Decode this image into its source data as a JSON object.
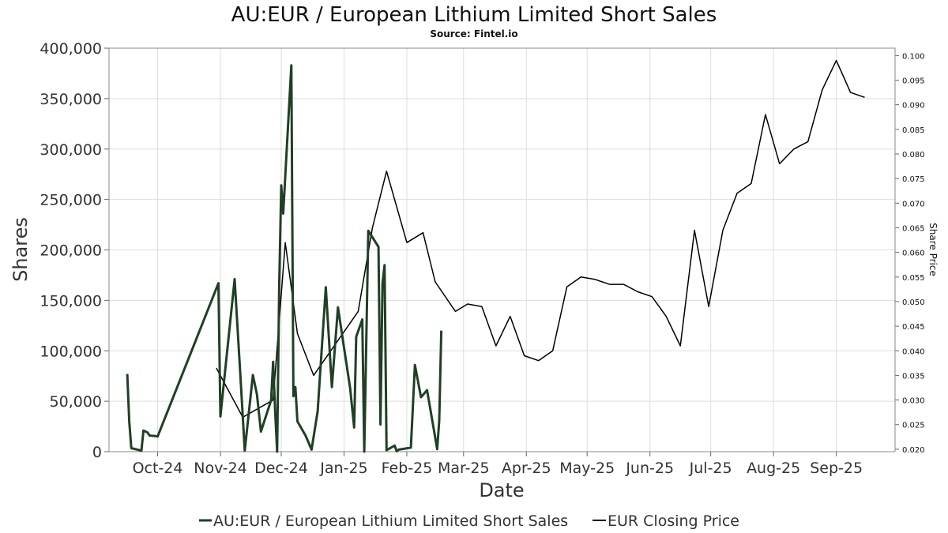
{
  "chart_data": {
    "type": "line",
    "title": "AU:EUR / European Lithium Limited Short Sales",
    "subtitle": "Source: Fintel.io",
    "xlabel": "Date",
    "ylabel": "Shares",
    "y2label": "Share Price",
    "xlim": [
      "2024-09-07",
      "2025-09-30"
    ],
    "ylim": [
      0,
      400000
    ],
    "y2lim": [
      0.0195,
      0.1015
    ],
    "x_ticks": [
      {
        "date": "2024-10-01",
        "label": "Oct-24"
      },
      {
        "date": "2024-11-01",
        "label": "Nov-24"
      },
      {
        "date": "2024-12-01",
        "label": "Dec-24"
      },
      {
        "date": "2025-01-01",
        "label": "Jan-25"
      },
      {
        "date": "2025-02-01",
        "label": "Feb-25"
      },
      {
        "date": "2025-03-01",
        "label": "Mar-25"
      },
      {
        "date": "2025-04-01",
        "label": "Apr-25"
      },
      {
        "date": "2025-05-01",
        "label": "May-25"
      },
      {
        "date": "2025-06-01",
        "label": "Jun-25"
      },
      {
        "date": "2025-07-01",
        "label": "Jul-25"
      },
      {
        "date": "2025-08-01",
        "label": "Aug-25"
      },
      {
        "date": "2025-09-01",
        "label": "Sep-25"
      }
    ],
    "y_ticks": [
      {
        "value": 0,
        "label": "0"
      },
      {
        "value": 50000,
        "label": "50,000"
      },
      {
        "value": 100000,
        "label": "100,000"
      },
      {
        "value": 150000,
        "label": "150,000"
      },
      {
        "value": 200000,
        "label": "200,000"
      },
      {
        "value": 250000,
        "label": "250,000"
      },
      {
        "value": 300000,
        "label": "300,000"
      },
      {
        "value": 350000,
        "label": "350,000"
      },
      {
        "value": 400000,
        "label": "400,000"
      }
    ],
    "y2_ticks": [
      {
        "value": 0.02,
        "label": "0.020"
      },
      {
        "value": 0.025,
        "label": "0.025"
      },
      {
        "value": 0.03,
        "label": "0.030"
      },
      {
        "value": 0.035,
        "label": "0.035"
      },
      {
        "value": 0.04,
        "label": "0.040"
      },
      {
        "value": 0.045,
        "label": "0.045"
      },
      {
        "value": 0.05,
        "label": "0.050"
      },
      {
        "value": 0.055,
        "label": "0.055"
      },
      {
        "value": 0.06,
        "label": "0.060"
      },
      {
        "value": 0.065,
        "label": "0.065"
      },
      {
        "value": 0.07,
        "label": "0.070"
      },
      {
        "value": 0.075,
        "label": "0.075"
      },
      {
        "value": 0.08,
        "label": "0.080"
      },
      {
        "value": 0.085,
        "label": "0.085"
      },
      {
        "value": 0.09,
        "label": "0.090"
      },
      {
        "value": 0.095,
        "label": "0.095"
      },
      {
        "value": 0.1,
        "label": "0.100"
      }
    ],
    "grid": true,
    "legend_position": "bottom",
    "series": [
      {
        "name": "AU:EUR / European Lithium Limited Short Sales",
        "axis": "left",
        "color": "#1f4024",
        "points": [
          [
            "2024-09-16",
            77000
          ],
          [
            "2024-09-17",
            30000
          ],
          [
            "2024-09-18",
            3500
          ],
          [
            "2024-09-23",
            1000
          ],
          [
            "2024-09-24",
            21000
          ],
          [
            "2024-09-26",
            19000
          ],
          [
            "2024-09-27",
            16000
          ],
          [
            "2024-09-30",
            15500
          ],
          [
            "2024-10-01",
            15000
          ],
          [
            "2024-10-31",
            167000
          ],
          [
            "2024-11-01",
            35000
          ],
          [
            "2024-11-08",
            171000
          ],
          [
            "2024-11-11",
            70000
          ],
          [
            "2024-11-13",
            1000
          ],
          [
            "2024-11-17",
            76000
          ],
          [
            "2024-11-19",
            57000
          ],
          [
            "2024-11-21",
            20000
          ],
          [
            "2024-11-26",
            51000
          ],
          [
            "2024-11-27",
            89000
          ],
          [
            "2024-11-28",
            40000
          ],
          [
            "2024-11-29",
            0
          ],
          [
            "2024-11-30",
            163000
          ],
          [
            "2024-12-01",
            264000
          ],
          [
            "2024-12-02",
            236000
          ],
          [
            "2024-12-06",
            383000
          ],
          [
            "2024-12-07",
            55000
          ],
          [
            "2024-12-08",
            64000
          ],
          [
            "2024-12-09",
            30000
          ],
          [
            "2024-12-13",
            16000
          ],
          [
            "2024-12-16",
            2000
          ],
          [
            "2024-12-19",
            40000
          ],
          [
            "2024-12-23",
            163000
          ],
          [
            "2024-12-26",
            64000
          ],
          [
            "2024-12-29",
            143000
          ],
          [
            "2025-01-04",
            63000
          ],
          [
            "2025-01-06",
            24000
          ],
          [
            "2025-01-07",
            114000
          ],
          [
            "2025-01-10",
            131000
          ],
          [
            "2025-01-11",
            0
          ],
          [
            "2025-01-13",
            219000
          ],
          [
            "2025-01-18",
            203000
          ],
          [
            "2025-01-19",
            27000
          ],
          [
            "2025-01-20",
            167000
          ],
          [
            "2025-01-21",
            185000
          ],
          [
            "2025-01-22",
            1500
          ],
          [
            "2025-01-26",
            6000
          ],
          [
            "2025-01-27",
            500
          ],
          [
            "2025-01-28",
            2000
          ],
          [
            "2025-02-03",
            4000
          ],
          [
            "2025-02-05",
            86000
          ],
          [
            "2025-02-08",
            54000
          ],
          [
            "2025-02-11",
            61000
          ],
          [
            "2025-02-16",
            2500
          ],
          [
            "2025-02-17",
            31000
          ],
          [
            "2025-02-18",
            120000
          ]
        ]
      },
      {
        "name": "EUR Closing Price",
        "axis": "right",
        "color": "#000000",
        "points": [
          [
            "2024-10-30",
            0.0365
          ],
          [
            "2024-11-12",
            0.0265
          ],
          [
            "2024-11-27",
            0.03
          ],
          [
            "2024-12-03",
            0.062
          ],
          [
            "2024-12-09",
            0.0435
          ],
          [
            "2024-12-17",
            0.035
          ],
          [
            "2025-01-08",
            0.048
          ],
          [
            "2025-01-15",
            0.065
          ],
          [
            "2025-01-22",
            0.0765
          ],
          [
            "2025-02-01",
            0.062
          ],
          [
            "2025-02-09",
            0.064
          ],
          [
            "2025-02-15",
            0.054
          ],
          [
            "2025-02-25",
            0.048
          ],
          [
            "2025-03-03",
            0.0495
          ],
          [
            "2025-03-10",
            0.049
          ],
          [
            "2025-03-17",
            0.041
          ],
          [
            "2025-03-24",
            0.047
          ],
          [
            "2025-03-31",
            0.039
          ],
          [
            "2025-04-07",
            0.038
          ],
          [
            "2025-04-14",
            0.04
          ],
          [
            "2025-04-21",
            0.053
          ],
          [
            "2025-04-28",
            0.055
          ],
          [
            "2025-05-05",
            0.0545
          ],
          [
            "2025-05-12",
            0.0535
          ],
          [
            "2025-05-19",
            0.0535
          ],
          [
            "2025-05-26",
            0.052
          ],
          [
            "2025-06-02",
            0.051
          ],
          [
            "2025-06-09",
            0.047
          ],
          [
            "2025-06-16",
            0.041
          ],
          [
            "2025-06-23",
            0.0645
          ],
          [
            "2025-06-30",
            0.049
          ],
          [
            "2025-07-07",
            0.0645
          ],
          [
            "2025-07-14",
            0.072
          ],
          [
            "2025-07-21",
            0.074
          ],
          [
            "2025-07-28",
            0.088
          ],
          [
            "2025-08-04",
            0.078
          ],
          [
            "2025-08-11",
            0.081
          ],
          [
            "2025-08-18",
            0.0825
          ],
          [
            "2025-08-25",
            0.093
          ],
          [
            "2025-09-01",
            0.099
          ],
          [
            "2025-09-08",
            0.0925
          ],
          [
            "2025-09-15",
            0.0915
          ]
        ]
      }
    ]
  }
}
